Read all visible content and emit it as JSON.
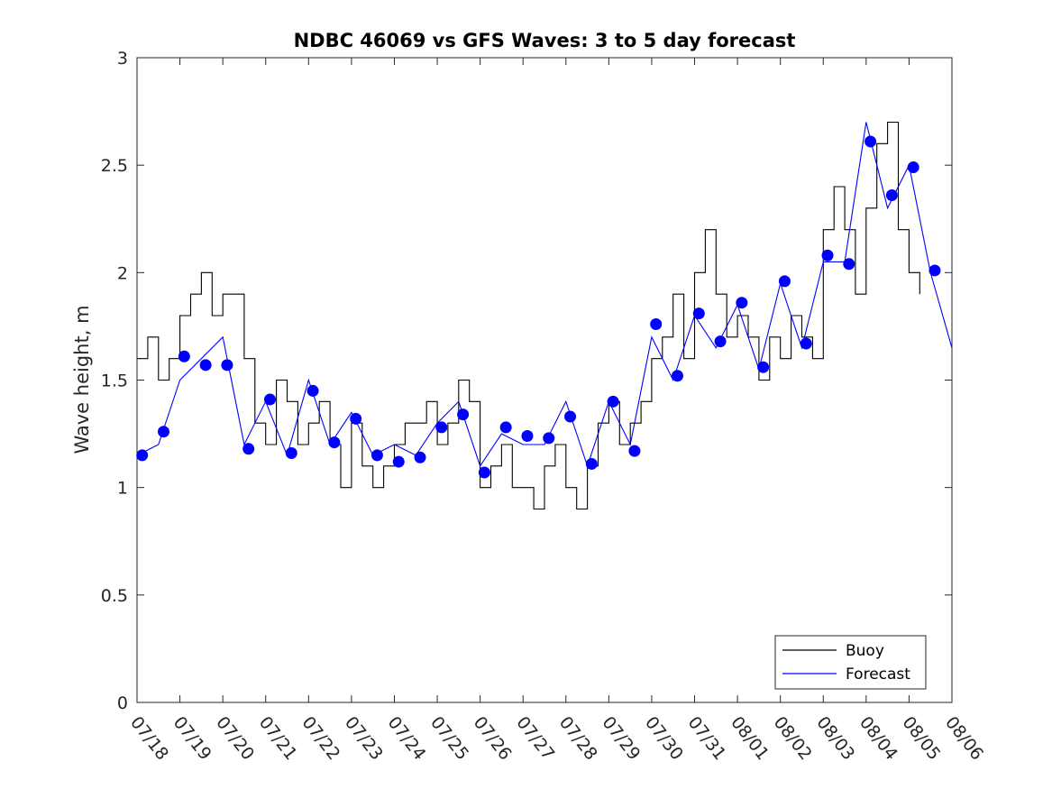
{
  "chart_data": {
    "type": "line",
    "title": "NDBC 46069 vs GFS Waves: 3 to 5 day forecast",
    "xlabel": "",
    "ylabel": "Wave height, m",
    "ylim": [
      0,
      3
    ],
    "yticks": [
      "0",
      "0.5",
      "1",
      "1.5",
      "2",
      "2.5",
      "3"
    ],
    "xlim_days": [
      0,
      19
    ],
    "xticks": [
      "07/18",
      "07/19",
      "07/20",
      "07/21",
      "07/22",
      "07/23",
      "07/24",
      "07/25",
      "07/26",
      "07/27",
      "07/28",
      "07/29",
      "07/30",
      "07/31",
      "08/01",
      "08/02",
      "08/03",
      "08/04",
      "08/05",
      "08/06"
    ],
    "grid": false,
    "legend": {
      "placement": "bottom-right",
      "entries": [
        {
          "label": "Buoy",
          "color": "#000000"
        },
        {
          "label": "Forecast",
          "color": "#0000ff"
        }
      ]
    },
    "series": [
      {
        "name": "Buoy",
        "color": "#000000",
        "style": "stepped-line",
        "x": [
          0,
          0.25,
          0.5,
          0.75,
          1.0,
          1.25,
          1.5,
          1.75,
          2.0,
          2.25,
          2.5,
          2.75,
          3.0,
          3.25,
          3.5,
          3.75,
          4.0,
          4.25,
          4.5,
          4.75,
          5.0,
          5.25,
          5.5,
          5.75,
          6.0,
          6.25,
          6.5,
          6.75,
          7.0,
          7.25,
          7.5,
          7.75,
          8.0,
          8.25,
          8.5,
          8.75,
          9.0,
          9.25,
          9.5,
          9.75,
          10.0,
          10.25,
          10.5,
          10.75,
          11.0,
          11.25,
          11.5,
          11.75,
          12.0,
          12.25,
          12.5,
          12.75,
          13.0,
          13.25,
          13.5,
          13.75,
          14.0,
          14.25,
          14.5,
          14.75,
          15.0,
          15.25,
          15.5,
          15.75,
          16.0,
          16.25,
          16.5,
          16.75,
          17.0,
          17.25,
          17.5,
          17.75,
          18.0,
          18.25
        ],
        "y": [
          1.6,
          1.7,
          1.5,
          1.6,
          1.8,
          1.9,
          2.0,
          1.8,
          1.9,
          1.9,
          1.6,
          1.3,
          1.2,
          1.5,
          1.4,
          1.2,
          1.3,
          1.4,
          1.2,
          1.0,
          1.3,
          1.1,
          1.0,
          1.1,
          1.2,
          1.3,
          1.3,
          1.4,
          1.2,
          1.3,
          1.5,
          1.4,
          1.0,
          1.1,
          1.2,
          1.0,
          1.0,
          0.9,
          1.1,
          1.2,
          1.0,
          0.9,
          1.1,
          1.3,
          1.4,
          1.2,
          1.3,
          1.4,
          1.6,
          1.7,
          1.9,
          1.6,
          2.0,
          2.2,
          1.9,
          1.7,
          1.8,
          1.7,
          1.5,
          1.7,
          1.6,
          1.8,
          1.7,
          1.6,
          2.2,
          2.4,
          2.2,
          1.9,
          2.3,
          2.6,
          2.7,
          2.2,
          2.0,
          1.9
        ]
      },
      {
        "name": "Forecast",
        "color": "#0000ff",
        "style": "line",
        "x": [
          0,
          0.5,
          1.0,
          1.5,
          2.0,
          2.5,
          3.0,
          3.5,
          4.0,
          4.5,
          5.0,
          5.5,
          6.0,
          6.5,
          7.0,
          7.5,
          8.0,
          8.5,
          9.0,
          9.5,
          10.0,
          10.5,
          11.0,
          11.5,
          12.0,
          12.5,
          13.0,
          13.5,
          14.0,
          14.5,
          15.0,
          15.5,
          16.0,
          16.5,
          17.0,
          17.5,
          18.0,
          18.5,
          19.0
        ],
        "y": [
          1.15,
          1.2,
          1.5,
          1.6,
          1.7,
          1.2,
          1.4,
          1.15,
          1.5,
          1.2,
          1.35,
          1.15,
          1.2,
          1.15,
          1.3,
          1.4,
          1.1,
          1.25,
          1.2,
          1.2,
          1.4,
          1.1,
          1.4,
          1.2,
          1.7,
          1.5,
          1.8,
          1.65,
          1.85,
          1.55,
          1.95,
          1.65,
          2.05,
          2.05,
          2.7,
          2.3,
          2.5,
          2.0,
          1.65
        ]
      },
      {
        "name": "Forecast points",
        "color": "#0000ff",
        "style": "markers",
        "x": [
          0.12,
          0.62,
          1.1,
          1.6,
          2.1,
          2.6,
          3.1,
          3.6,
          4.1,
          4.6,
          5.1,
          5.6,
          6.1,
          6.6,
          7.1,
          7.6,
          8.1,
          8.6,
          9.1,
          9.6,
          10.1,
          10.6,
          11.1,
          11.6,
          12.1,
          12.6,
          13.1,
          13.6,
          14.1,
          14.6,
          15.1,
          15.6,
          16.1,
          16.6,
          17.1,
          17.6,
          18.1,
          18.6
        ],
        "y": [
          1.15,
          1.26,
          1.61,
          1.57,
          1.57,
          1.18,
          1.41,
          1.16,
          1.45,
          1.21,
          1.32,
          1.15,
          1.12,
          1.14,
          1.28,
          1.34,
          1.07,
          1.28,
          1.24,
          1.23,
          1.33,
          1.11,
          1.4,
          1.17,
          1.76,
          1.52,
          1.81,
          1.68,
          1.86,
          1.56,
          1.96,
          1.67,
          2.08,
          2.04,
          2.61,
          2.36,
          2.49,
          2.01
        ]
      }
    ]
  }
}
